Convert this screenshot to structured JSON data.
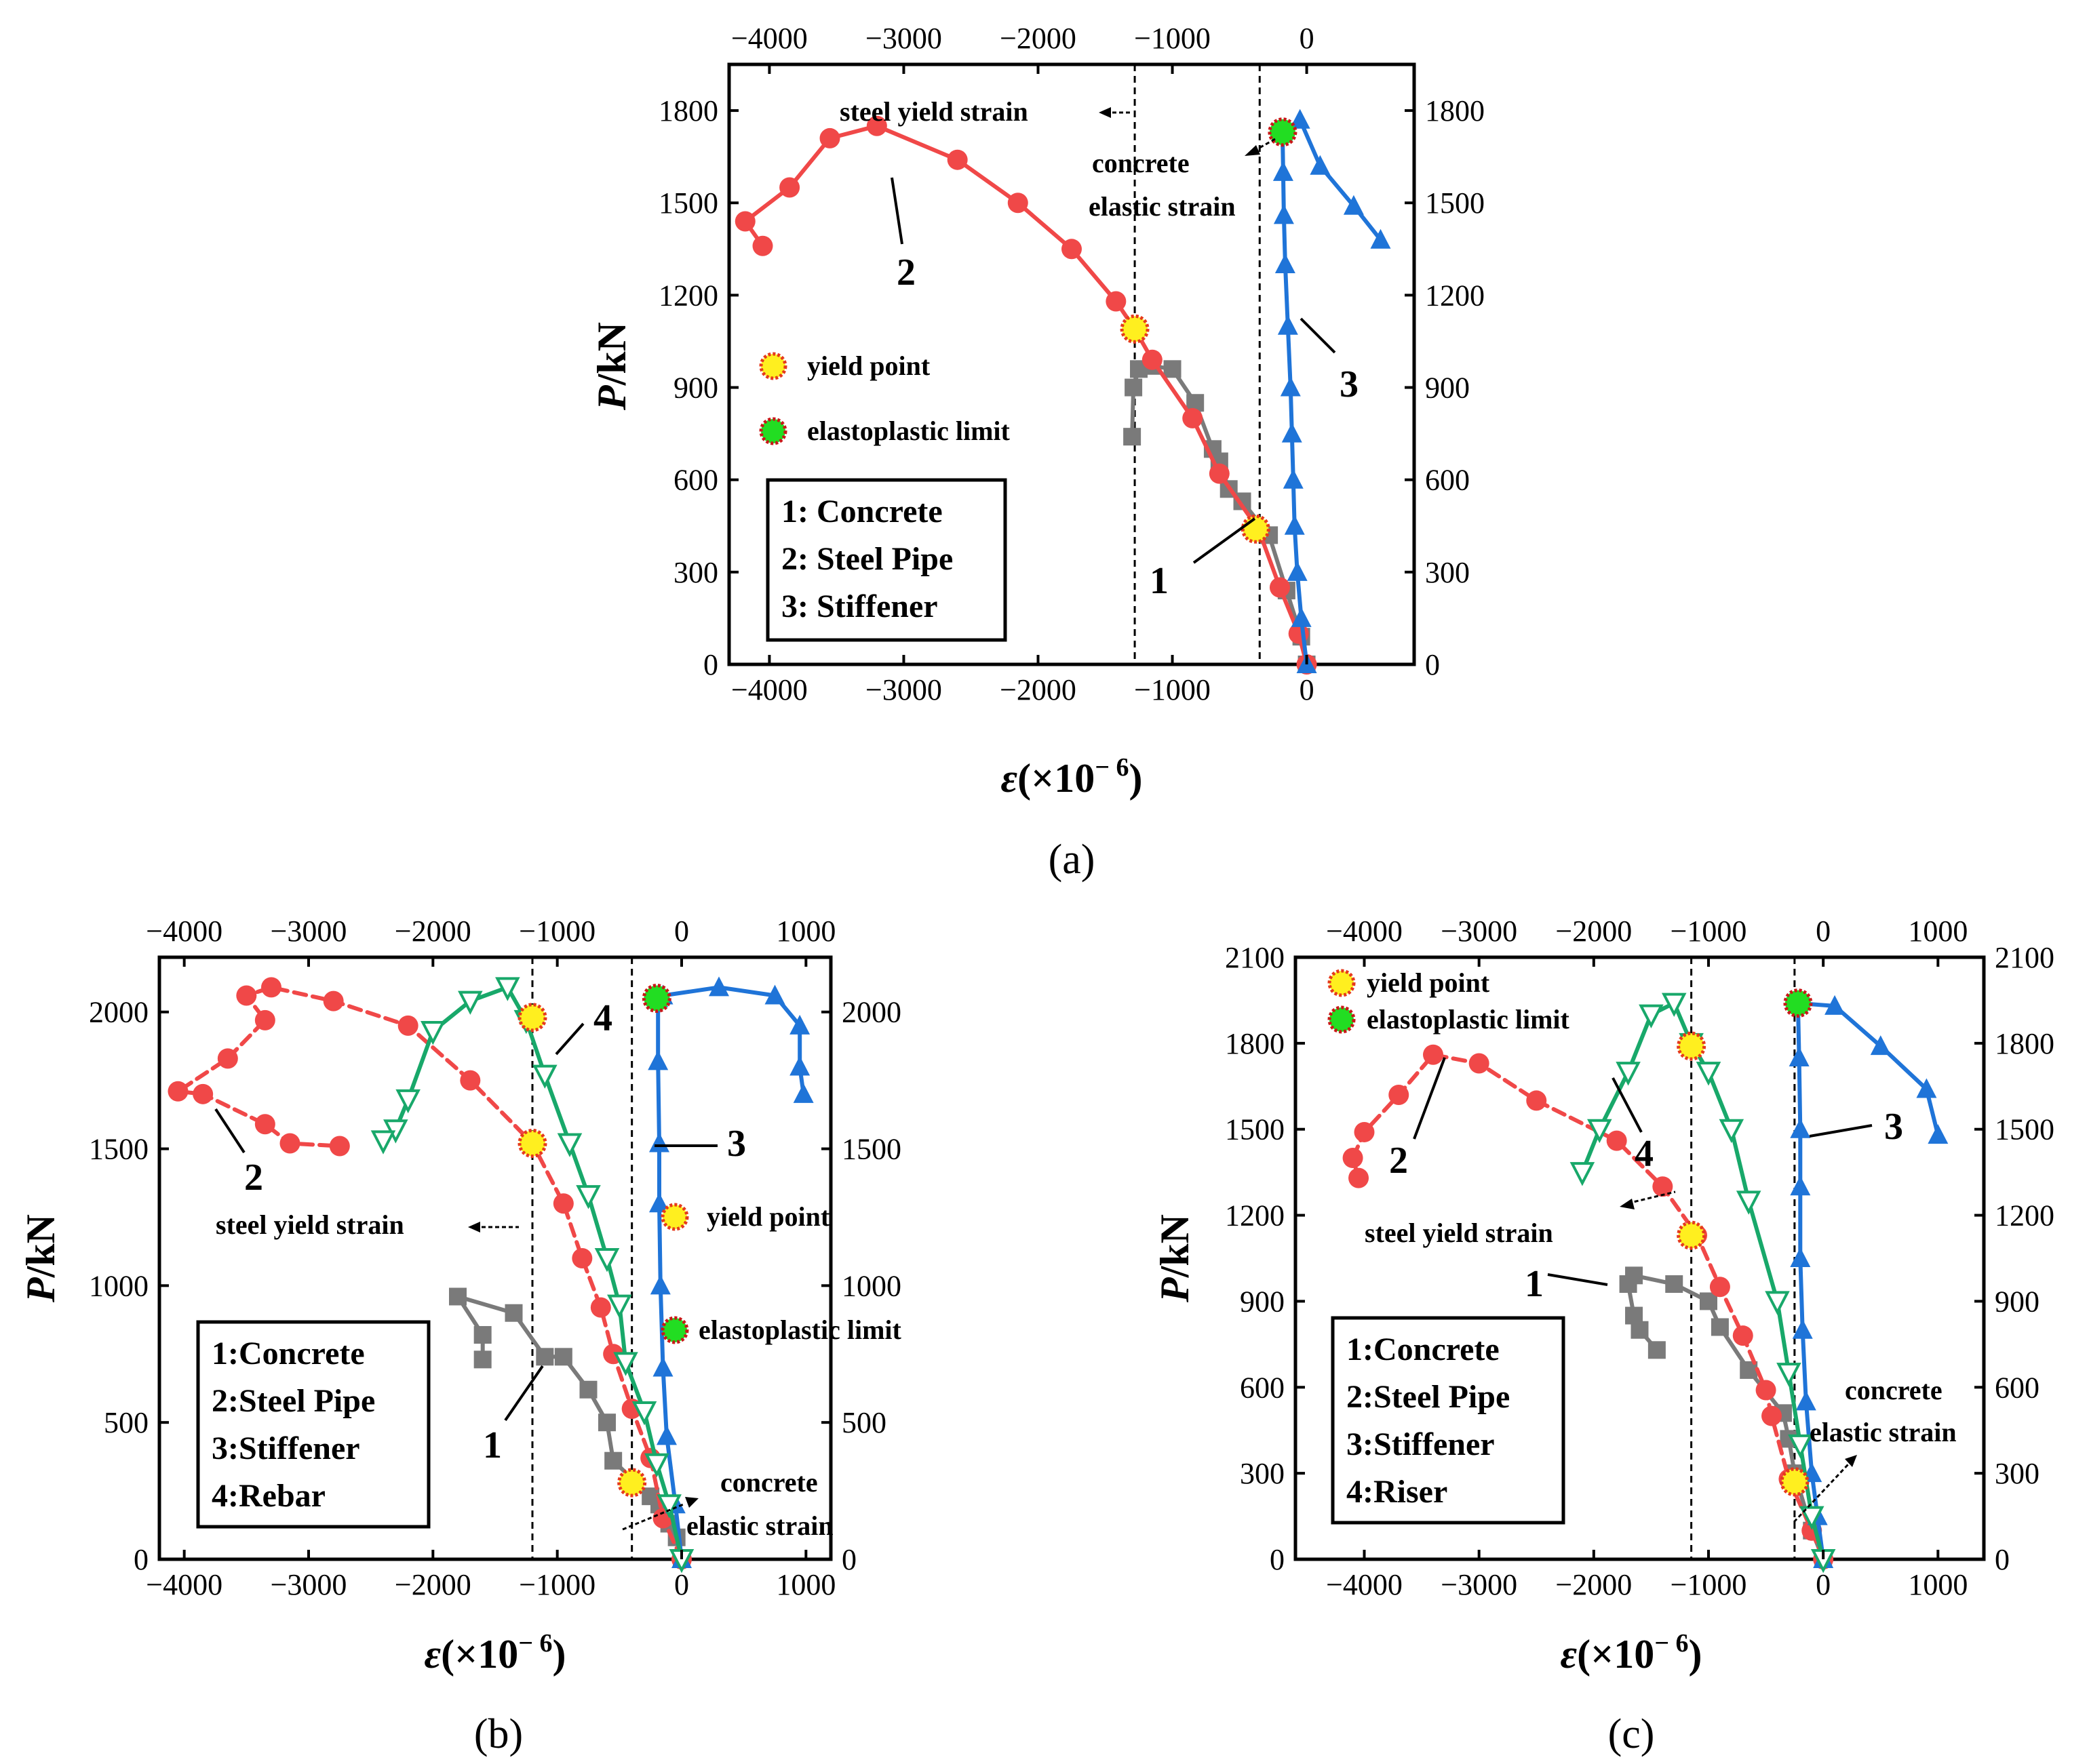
{
  "figure": {
    "type": "multi-panel strain-load curves"
  },
  "colors": {
    "concrete": "#7a7a7a",
    "steel_pipe": "#f04848",
    "stiffener": "#1f74d8",
    "rebar": "#18a86a",
    "yield_fill": "#ffef1f",
    "yield_ring": "#e53a1c",
    "elastic_fill": "#22dd22",
    "elastic_ring": "#c81818"
  },
  "chart_data": [
    {
      "id": "a",
      "type": "line",
      "panel_label": "(a)",
      "xlabel_prefix": "ε",
      "xlabel_suffix": "(×10",
      "xlabel_exp": "− 6",
      "xlabel_close": ")",
      "ylabel_prefix": "P",
      "ylabel_suffix": "/kN",
      "xlim": [
        -4300,
        800
      ],
      "ylim": [
        0,
        1950
      ],
      "x_ticks": [
        -4000,
        -3000,
        -2000,
        -1000,
        0
      ],
      "x_tick_labels": [
        "−4000",
        "−3000",
        "−2000",
        "−1000",
        "0"
      ],
      "y_ticks": [
        0,
        300,
        600,
        900,
        1200,
        1500,
        1800
      ],
      "y_tick_labels": [
        "0",
        "300",
        "600",
        "900",
        "1200",
        "1500",
        "1800"
      ],
      "vlines": [
        -1280,
        -350
      ],
      "series": [
        {
          "name": "Concrete",
          "label_no": "1",
          "color": "#7a7a7a",
          "marker": "square",
          "dash": false,
          "points": [
            [
              0,
              0
            ],
            [
              -40,
              90
            ],
            [
              -150,
              240
            ],
            [
              -280,
              420
            ],
            [
              -480,
              530
            ],
            [
              -580,
              570
            ],
            [
              -650,
              660
            ],
            [
              -700,
              700
            ],
            [
              -830,
              850
            ],
            [
              -1000,
              960
            ],
            [
              -1150,
              970
            ],
            [
              -1250,
              960
            ],
            [
              -1290,
              900
            ],
            [
              -1300,
              740
            ]
          ]
        },
        {
          "name": "Steel Pipe",
          "label_no": "2",
          "color": "#f04848",
          "marker": "circle",
          "dash": false,
          "points": [
            [
              0,
              0
            ],
            [
              -60,
              100
            ],
            [
              -200,
              250
            ],
            [
              -360,
              440
            ],
            [
              -650,
              620
            ],
            [
              -850,
              800
            ],
            [
              -1150,
              990
            ],
            [
              -1280,
              1090
            ],
            [
              -1420,
              1180
            ],
            [
              -1750,
              1350
            ],
            [
              -2150,
              1500
            ],
            [
              -2600,
              1640
            ],
            [
              -3200,
              1750
            ],
            [
              -3550,
              1710
            ],
            [
              -3850,
              1550
            ],
            [
              -4180,
              1440
            ],
            [
              -4050,
              1360
            ]
          ]
        },
        {
          "name": "Stiffener",
          "label_no": "3",
          "color": "#1f74d8",
          "marker": "triangle-up",
          "dash": false,
          "points": [
            [
              0,
              0
            ],
            [
              -40,
              150
            ],
            [
              -70,
              300
            ],
            [
              -90,
              450
            ],
            [
              -100,
              600
            ],
            [
              -110,
              750
            ],
            [
              -120,
              900
            ],
            [
              -140,
              1100
            ],
            [
              -160,
              1300
            ],
            [
              -170,
              1460
            ],
            [
              -175,
              1600
            ],
            [
              -180,
              1730
            ],
            [
              -50,
              1770
            ],
            [
              100,
              1620
            ],
            [
              350,
              1490
            ],
            [
              550,
              1380
            ]
          ]
        }
      ],
      "yield_points": [
        [
          -1280,
          1090
        ],
        [
          -380,
          440
        ]
      ],
      "elastoplastic_points": [
        [
          -180,
          1730
        ]
      ],
      "legend_items": [
        "1: Concrete",
        "2: Steel Pipe",
        "3: Stiffener"
      ],
      "marker_legend": [
        "yield point",
        "elastoplastic limit"
      ],
      "annotations": [
        "steel yield strain",
        "concrete",
        "elastic strain"
      ],
      "curve_numbers": [
        "1",
        "2",
        "3"
      ]
    },
    {
      "id": "b",
      "type": "line",
      "panel_label": "(b)",
      "xlabel_prefix": "ε",
      "xlabel_suffix": "(×10",
      "xlabel_exp": "− 6",
      "xlabel_close": ")",
      "ylabel_prefix": "P",
      "ylabel_suffix": "/kN",
      "xlim": [
        -4200,
        1200
      ],
      "ylim": [
        0,
        2200
      ],
      "x_ticks": [
        -4000,
        -3000,
        -2000,
        -1000,
        0,
        1000
      ],
      "x_tick_labels": [
        "−4000",
        "−3000",
        "−2000",
        "−1000",
        "0",
        "1000"
      ],
      "y_ticks": [
        0,
        500,
        1000,
        1500,
        2000
      ],
      "y_tick_labels": [
        "0",
        "500",
        "1000",
        "1500",
        "2000"
      ],
      "vlines": [
        -1200,
        -400
      ],
      "series": [
        {
          "name": "Concrete",
          "label_no": "1",
          "color": "#7a7a7a",
          "marker": "square",
          "dash": false,
          "points": [
            [
              0,
              0
            ],
            [
              -40,
              80
            ],
            [
              -100,
              130
            ],
            [
              -180,
              200
            ],
            [
              -250,
              230
            ],
            [
              -550,
              360
            ],
            [
              -600,
              500
            ],
            [
              -750,
              620
            ],
            [
              -950,
              740
            ],
            [
              -1100,
              740
            ],
            [
              -1350,
              900
            ],
            [
              -1800,
              960
            ],
            [
              -1600,
              820
            ],
            [
              -1600,
              730
            ]
          ]
        },
        {
          "name": "Steel Pipe",
          "label_no": "2",
          "color": "#f04848",
          "marker": "circle",
          "dash": true,
          "points": [
            [
              0,
              0
            ],
            [
              -150,
              150
            ],
            [
              -250,
              370
            ],
            [
              -400,
              550
            ],
            [
              -550,
              750
            ],
            [
              -650,
              920
            ],
            [
              -800,
              1100
            ],
            [
              -950,
              1300
            ],
            [
              -1200,
              1520
            ],
            [
              -1700,
              1750
            ],
            [
              -2200,
              1950
            ],
            [
              -2800,
              2040
            ],
            [
              -3300,
              2090
            ],
            [
              -3500,
              2060
            ],
            [
              -3350,
              1970
            ],
            [
              -3650,
              1830
            ],
            [
              -4050,
              1710
            ],
            [
              -3850,
              1700
            ],
            [
              -3350,
              1590
            ],
            [
              -3150,
              1520
            ],
            [
              -2750,
              1510
            ]
          ]
        },
        {
          "name": "Stiffener",
          "label_no": "3",
          "color": "#1f74d8",
          "marker": "triangle-up",
          "dash": false,
          "points": [
            [
              0,
              0
            ],
            [
              -50,
              200
            ],
            [
              -120,
              450
            ],
            [
              -150,
              700
            ],
            [
              -170,
              1000
            ],
            [
              -180,
              1300
            ],
            [
              -180,
              1520
            ],
            [
              -190,
              1820
            ],
            [
              -190,
              2050
            ],
            [
              -150,
              2060
            ],
            [
              300,
              2090
            ],
            [
              750,
              2060
            ],
            [
              950,
              1950
            ],
            [
              950,
              1800
            ],
            [
              980,
              1700
            ]
          ]
        },
        {
          "name": "Rebar",
          "label_no": "4",
          "color": "#18a86a",
          "marker": "triangle-down-open",
          "dash": false,
          "points": [
            [
              0,
              0
            ],
            [
              -100,
              200
            ],
            [
              -200,
              350
            ],
            [
              -300,
              540
            ],
            [
              -450,
              720
            ],
            [
              -500,
              930
            ],
            [
              -600,
              1100
            ],
            [
              -750,
              1330
            ],
            [
              -900,
              1520
            ],
            [
              -1100,
              1770
            ],
            [
              -1250,
              1970
            ],
            [
              -1400,
              2090
            ],
            [
              -1700,
              2040
            ],
            [
              -2000,
              1930
            ],
            [
              -2200,
              1680
            ],
            [
              -2300,
              1570
            ],
            [
              -2400,
              1530
            ]
          ]
        }
      ],
      "yield_points": [
        [
          -1200,
          1980
        ],
        [
          -1200,
          1520
        ],
        [
          -400,
          280
        ]
      ],
      "elastoplastic_points": [
        [
          -200,
          2050
        ]
      ],
      "legend_items": [
        "1:Concrete",
        "2:Steel Pipe",
        "3:Stiffener",
        "4:Rebar"
      ],
      "marker_legend": [
        "yield point",
        "elastoplastic limit"
      ],
      "annotations": [
        "steel yield strain",
        "concrete",
        "elastic strain"
      ],
      "curve_numbers": [
        "1",
        "2",
        "3",
        "4"
      ]
    },
    {
      "id": "c",
      "type": "line",
      "panel_label": "(c)",
      "xlabel_prefix": "ε",
      "xlabel_suffix": "(×10",
      "xlabel_exp": "− 6",
      "xlabel_close": ")",
      "ylabel_prefix": "P",
      "ylabel_suffix": "/kN",
      "xlim": [
        -4600,
        1400
      ],
      "ylim": [
        0,
        2100
      ],
      "x_ticks": [
        -4000,
        -3000,
        -2000,
        -1000,
        0,
        1000
      ],
      "x_tick_labels": [
        "−4000",
        "−3000",
        "−2000",
        "−1000",
        "0",
        "1000"
      ],
      "y_ticks": [
        0,
        300,
        600,
        900,
        1200,
        1500,
        1800,
        2100
      ],
      "y_tick_labels": [
        "0",
        "300",
        "600",
        "900",
        "1200",
        "1500",
        "1800",
        "2100"
      ],
      "vlines": [
        -1150,
        -250
      ],
      "series": [
        {
          "name": "Concrete",
          "label_no": "1",
          "color": "#7a7a7a",
          "marker": "square",
          "dash": false,
          "points": [
            [
              0,
              0
            ],
            [
              -100,
              100
            ],
            [
              -250,
              300
            ],
            [
              -300,
              420
            ],
            [
              -350,
              510
            ],
            [
              -650,
              660
            ],
            [
              -900,
              810
            ],
            [
              -1000,
              900
            ],
            [
              -1300,
              960
            ],
            [
              -1650,
              990
            ],
            [
              -1700,
              960
            ],
            [
              -1650,
              850
            ],
            [
              -1600,
              800
            ],
            [
              -1450,
              730
            ]
          ]
        },
        {
          "name": "Steel Pipe",
          "label_no": "2",
          "color": "#f04848",
          "marker": "circle",
          "dash": true,
          "points": [
            [
              0,
              0
            ],
            [
              -100,
              100
            ],
            [
              -300,
              280
            ],
            [
              -450,
              500
            ],
            [
              -500,
              590
            ],
            [
              -700,
              780
            ],
            [
              -900,
              950
            ],
            [
              -1100,
              1130
            ],
            [
              -1400,
              1300
            ],
            [
              -1800,
              1460
            ],
            [
              -2500,
              1600
            ],
            [
              -3000,
              1730
            ],
            [
              -3400,
              1760
            ],
            [
              -3700,
              1620
            ],
            [
              -4000,
              1490
            ],
            [
              -4100,
              1400
            ],
            [
              -4050,
              1330
            ]
          ]
        },
        {
          "name": "Stiffener",
          "label_no": "3",
          "color": "#1f74d8",
          "marker": "triangle-up",
          "dash": false,
          "points": [
            [
              0,
              0
            ],
            [
              -50,
              150
            ],
            [
              -100,
              300
            ],
            [
              -150,
              550
            ],
            [
              -180,
              800
            ],
            [
              -200,
              1050
            ],
            [
              -200,
              1300
            ],
            [
              -200,
              1500
            ],
            [
              -210,
              1750
            ],
            [
              -220,
              1940
            ],
            [
              100,
              1930
            ],
            [
              500,
              1790
            ],
            [
              900,
              1640
            ],
            [
              1000,
              1480
            ]
          ]
        },
        {
          "name": "Riser",
          "label_no": "4",
          "color": "#18a86a",
          "marker": "triangle-down-open",
          "dash": false,
          "points": [
            [
              0,
              0
            ],
            [
              -100,
              150
            ],
            [
              -200,
              400
            ],
            [
              -300,
              650
            ],
            [
              -400,
              900
            ],
            [
              -650,
              1250
            ],
            [
              -800,
              1500
            ],
            [
              -1000,
              1700
            ],
            [
              -1150,
              1800
            ],
            [
              -1300,
              1940
            ],
            [
              -1500,
              1900
            ],
            [
              -1700,
              1700
            ],
            [
              -1950,
              1500
            ],
            [
              -2100,
              1350
            ]
          ]
        }
      ],
      "yield_points": [
        [
          -1150,
          1790
        ],
        [
          -1150,
          1130
        ],
        [
          -250,
          270
        ]
      ],
      "elastoplastic_points": [
        [
          -220,
          1940
        ]
      ],
      "legend_items": [
        "1:Concrete",
        "2:Steel Pipe",
        "3:Stiffener",
        "4:Riser"
      ],
      "marker_legend": [
        "yield point",
        "elastoplastic limit"
      ],
      "annotations": [
        "steel yield strain",
        "concrete",
        "elastic strain"
      ],
      "curve_numbers": [
        "1",
        "2",
        "3",
        "4"
      ]
    }
  ]
}
